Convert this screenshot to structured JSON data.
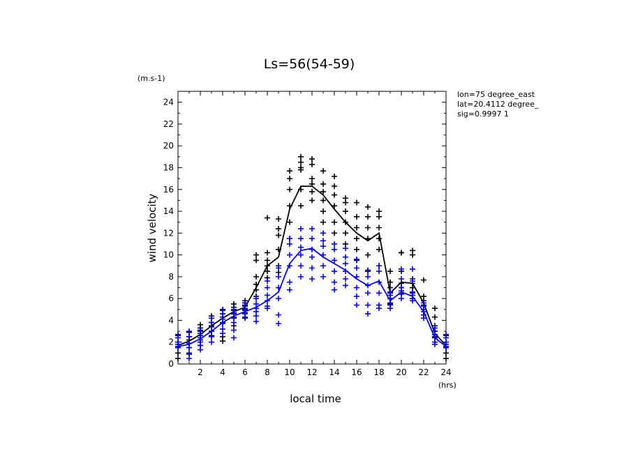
{
  "chart_data": {
    "type": "line",
    "title": "Ls=56(54-59)",
    "xlabel": "local time",
    "ylabel": "wind velocity",
    "x_unit": "(hrs)",
    "y_unit": "(m.s-1)",
    "xlim": [
      0,
      24
    ],
    "ylim": [
      0,
      25
    ],
    "x_ticks": [
      2,
      4,
      6,
      8,
      10,
      12,
      14,
      16,
      18,
      20,
      22,
      24
    ],
    "y_ticks": [
      0,
      2,
      4,
      6,
      8,
      10,
      12,
      14,
      16,
      18,
      20,
      22,
      24
    ],
    "grid": false,
    "info_lines": [
      "lon=75 degree_east",
      "lat=20.4112 degree_",
      "sig=0.9997 1"
    ],
    "series": [
      {
        "color": "#000000",
        "x": [
          0,
          1,
          2,
          3,
          4,
          5,
          6,
          7,
          8,
          9,
          10,
          11,
          12,
          13,
          14,
          15,
          16,
          17,
          18,
          19,
          20,
          21,
          22,
          23,
          24
        ],
        "mean": [
          1.7,
          2.1,
          2.7,
          3.5,
          4.2,
          4.8,
          5.2,
          7.0,
          9.0,
          9.8,
          14.2,
          16.3,
          16.3,
          15.5,
          14.2,
          13.0,
          12.0,
          11.3,
          12.0,
          6.5,
          7.5,
          7.4,
          5.6,
          2.8,
          1.7
        ],
        "scatter": [
          [
            0.5,
            1.0,
            1.5,
            1.8,
            2.0,
            2.6
          ],
          [
            0.9,
            1.5,
            1.9,
            2.2,
            2.5,
            2.9
          ],
          [
            1.7,
            2.2,
            2.6,
            3.0,
            3.3,
            3.6
          ],
          [
            2.6,
            3.0,
            3.5,
            3.8,
            4.2,
            4.4
          ],
          [
            2.1,
            2.5,
            3.8,
            4.3,
            4.6,
            5.0
          ],
          [
            3.5,
            4.2,
            4.6,
            4.9,
            5.2,
            5.5
          ],
          [
            4.2,
            4.7,
            5.0,
            5.3,
            5.6,
            5.8
          ],
          [
            6.2,
            6.8,
            7.3,
            8.0,
            9.5,
            10.0
          ],
          [
            7.9,
            8.5,
            9.0,
            9.5,
            10.2,
            13.4
          ],
          [
            8.4,
            9.0,
            10.5,
            11.8,
            12.4,
            13.3
          ],
          [
            11.5,
            13.0,
            14.5,
            16.0,
            17.0,
            17.7
          ],
          [
            14.5,
            16.0,
            17.8,
            18.0,
            18.5,
            19.0
          ],
          [
            15.0,
            15.8,
            16.5,
            17.0,
            18.3,
            18.8
          ],
          [
            13.0,
            14.0,
            15.0,
            15.8,
            16.5,
            17.7
          ],
          [
            12.0,
            13.0,
            14.5,
            15.5,
            16.3,
            17.2
          ],
          [
            11.0,
            12.0,
            13.0,
            14.0,
            14.8,
            15.2
          ],
          [
            9.5,
            10.5,
            11.5,
            12.5,
            13.5,
            14.8
          ],
          [
            8.5,
            10.0,
            11.5,
            12.5,
            13.5,
            14.4
          ],
          [
            9.0,
            10.5,
            11.5,
            12.5,
            13.5,
            14.0
          ],
          [
            5.5,
            6.0,
            6.5,
            7.0,
            7.5,
            8.5
          ],
          [
            6.5,
            7.0,
            7.4,
            8.5,
            10.2,
            10.2
          ],
          [
            6.5,
            7.0,
            7.4,
            7.8,
            10.0,
            10.4
          ],
          [
            4.5,
            5.0,
            5.4,
            5.8,
            6.2,
            7.7
          ],
          [
            2.0,
            2.5,
            3.0,
            3.5,
            4.3,
            5.1
          ],
          [
            0.5,
            1.0,
            1.5,
            1.8,
            2.0,
            2.6
          ]
        ]
      },
      {
        "color": "#0000ff",
        "x": [
          0,
          1,
          2,
          3,
          4,
          5,
          6,
          7,
          8,
          9,
          10,
          11,
          12,
          13,
          14,
          15,
          16,
          17,
          18,
          19,
          20,
          21,
          22,
          23,
          24
        ],
        "mean": [
          1.6,
          1.8,
          2.3,
          3.0,
          3.8,
          4.4,
          4.8,
          5.2,
          5.8,
          6.6,
          9.2,
          10.4,
          10.6,
          9.8,
          9.2,
          8.6,
          7.8,
          7.2,
          7.6,
          5.8,
          6.6,
          6.2,
          4.8,
          2.4,
          1.6
        ],
        "scatter": [
          [
            1.5,
            1.6,
            1.8,
            2.0,
            2.4,
            2.7
          ],
          [
            0.5,
            1.0,
            1.5,
            1.9,
            2.5,
            3.0
          ],
          [
            1.3,
            1.7,
            2.0,
            2.4,
            2.8,
            3.1
          ],
          [
            2.0,
            2.5,
            3.0,
            3.4,
            3.8,
            4.2
          ],
          [
            2.8,
            3.2,
            3.7,
            4.1,
            4.6,
            4.9
          ],
          [
            2.4,
            3.1,
            3.8,
            4.3,
            4.7,
            5.0
          ],
          [
            4.3,
            4.6,
            4.9,
            5.1,
            5.4,
            5.6
          ],
          [
            3.9,
            4.4,
            4.8,
            5.1,
            5.5,
            6.0
          ],
          [
            5.1,
            5.3,
            5.8,
            6.3,
            7.0,
            7.6
          ],
          [
            3.7,
            4.5,
            6.0,
            7.0,
            8.0,
            8.8
          ],
          [
            6.8,
            7.5,
            9.0,
            10.0,
            11.0,
            11.5
          ],
          [
            8.0,
            9.0,
            10.0,
            10.7,
            11.5,
            12.4
          ],
          [
            7.8,
            8.8,
            9.8,
            10.5,
            11.5,
            12.4
          ],
          [
            8.0,
            9.0,
            10.0,
            10.8,
            11.3,
            12.0
          ],
          [
            6.8,
            7.5,
            8.5,
            9.5,
            10.5,
            11.0
          ],
          [
            7.2,
            7.8,
            8.5,
            9.2,
            9.8,
            10.6
          ],
          [
            5.4,
            6.2,
            7.0,
            8.0,
            8.8,
            9.6
          ],
          [
            4.6,
            5.4,
            6.5,
            7.2,
            8.0,
            8.6
          ],
          [
            5.1,
            5.4,
            6.5,
            7.5,
            8.5,
            9.0
          ],
          [
            5.1,
            5.4,
            5.6,
            6.0,
            6.3,
            6.6
          ],
          [
            6.0,
            6.4,
            6.7,
            7.0,
            7.8,
            8.7
          ],
          [
            5.8,
            6.0,
            6.3,
            6.6,
            7.6,
            8.7
          ],
          [
            4.2,
            4.5,
            4.8,
            5.0,
            5.3,
            5.6
          ],
          [
            1.8,
            2.0,
            2.4,
            2.7,
            3.0,
            3.3
          ],
          [
            1.5,
            1.6,
            1.8,
            2.0,
            2.4,
            2.7
          ]
        ]
      }
    ]
  }
}
